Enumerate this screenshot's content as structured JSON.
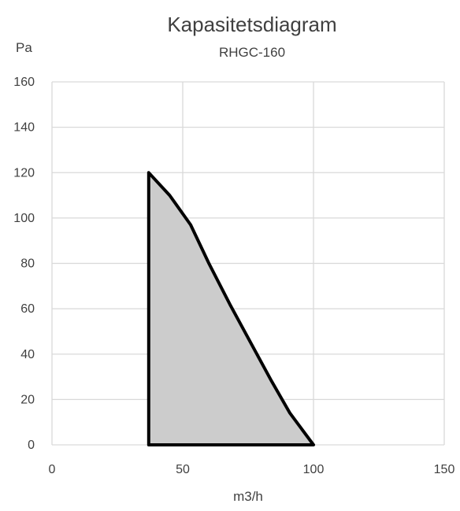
{
  "chart_data": {
    "type": "area",
    "title": "Kapasitetsdiagram",
    "subtitle": "RHGC-160",
    "xlabel": "m3/h",
    "ylabel": "Pa",
    "xlim": [
      0,
      150
    ],
    "ylim": [
      0,
      160
    ],
    "x_ticks": [
      0,
      50,
      100,
      150
    ],
    "y_ticks": [
      0,
      20,
      40,
      60,
      80,
      100,
      120,
      140,
      160
    ],
    "grid": true,
    "legend": "none",
    "series": [
      {
        "x": [
          37,
          37,
          45,
          53,
          60,
          68,
          76,
          84,
          91,
          100,
          37
        ],
        "y": [
          0,
          120,
          110,
          97,
          80,
          62,
          45,
          28,
          14,
          0,
          0
        ]
      }
    ],
    "colors": {
      "fill": "#cccccc",
      "stroke": "#000000",
      "grid": "#d9d9d9",
      "text": "#404040"
    }
  }
}
